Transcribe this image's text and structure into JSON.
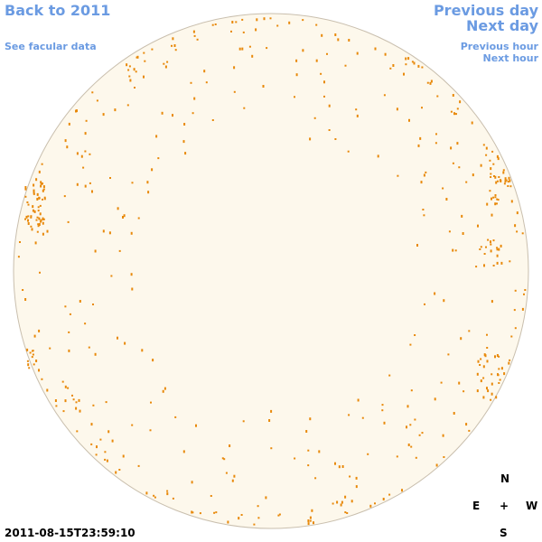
{
  "navigation": {
    "back": "Back to 2011",
    "facular_data": "See facular data",
    "previous_day": "Previous day",
    "next_day": "Next day",
    "previous_hour": "Previous hour",
    "next_hour": "Next hour"
  },
  "timestamp": "2011-08-15T23:59:10",
  "compass": {
    "north": "N",
    "east": "E",
    "center": "+",
    "west": "W",
    "south": "S"
  }
}
